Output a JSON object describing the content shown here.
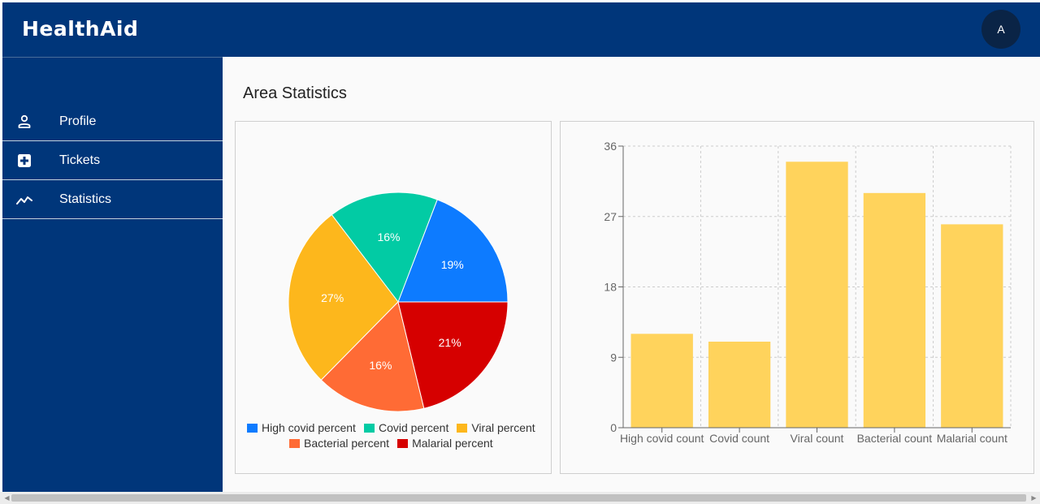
{
  "app": {
    "brand": "HealthAid",
    "avatar_initial": "A"
  },
  "sidebar": {
    "items": [
      {
        "label": "Profile",
        "icon": "person-icon"
      },
      {
        "label": "Tickets",
        "icon": "medical-plus-icon"
      },
      {
        "label": "Statistics",
        "icon": "trending-line-icon"
      }
    ]
  },
  "main": {
    "title": "Area Statistics"
  },
  "colors": {
    "appbar": "#00367a",
    "bar_fill": "#ffd35c"
  },
  "chart_data": [
    {
      "type": "pie",
      "categories": [
        "High covid percent",
        "Covid percent",
        "Viral percent",
        "Bacterial percent",
        "Malarial percent"
      ],
      "values": [
        19,
        16,
        27,
        16,
        21
      ],
      "labels": [
        "19%",
        "16%",
        "27%",
        "16%",
        "21%"
      ],
      "colors": [
        "#0d7bff",
        "#02cba4",
        "#fdb71c",
        "#ff6b35",
        "#d60000"
      ],
      "legend": "bottom"
    },
    {
      "type": "bar",
      "categories": [
        "High covid count",
        "Covid count",
        "Viral count",
        "Bacterial count",
        "Malarial count"
      ],
      "values": [
        12,
        11,
        34,
        30,
        26
      ],
      "ylim": [
        0,
        36
      ],
      "yticks": [
        "0",
        "9",
        "18",
        "27",
        "36"
      ],
      "grid": true,
      "color": "#ffd35c"
    }
  ]
}
